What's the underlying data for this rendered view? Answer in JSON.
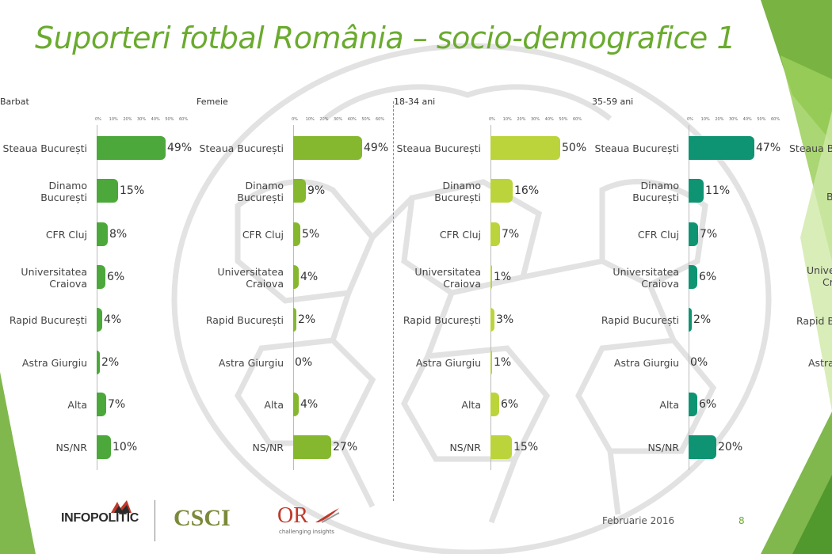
{
  "slide_title": "Suporteri fotbal România – socio-demografice 1",
  "tick_labels": [
    "0%",
    "10%",
    "20%",
    "30%",
    "40%",
    "50%",
    "60%"
  ],
  "colors": {
    "title": "#6aab2e",
    "barbat": "#4ca83a",
    "femeie": "#86b82f",
    "age_18_34": "#bcd43b",
    "age_35_59": "#0f9473"
  },
  "chart_data": [
    {
      "type": "bar",
      "orientation": "horizontal",
      "title": "Barbat",
      "categories": [
        "Steaua București",
        "Dinamo\nBucurești",
        "CFR Cluj",
        "Universitatea\nCraiova",
        "Rapid București",
        "Astra Giurgiu",
        "Alta",
        "NS/NR"
      ],
      "values": [
        49,
        15,
        8,
        6,
        4,
        2,
        7,
        10
      ],
      "value_labels": [
        "49%",
        "15%",
        "8%",
        "6%",
        "4%",
        "2%",
        "7%",
        "10%"
      ],
      "xlim": [
        0,
        60
      ],
      "unit": "%"
    },
    {
      "type": "bar",
      "orientation": "horizontal",
      "title": "Femeie",
      "categories": [
        "Steaua București",
        "Dinamo\nBucurești",
        "CFR Cluj",
        "Universitatea\nCraiova",
        "Rapid București",
        "Astra Giurgiu",
        "Alta",
        "NS/NR"
      ],
      "values": [
        49,
        9,
        5,
        4,
        2,
        0,
        4,
        27
      ],
      "value_labels": [
        "49%",
        "9%",
        "5%",
        "4%",
        "2%",
        "0%",
        "4%",
        "27%"
      ],
      "xlim": [
        0,
        60
      ],
      "unit": "%"
    },
    {
      "type": "bar",
      "orientation": "horizontal",
      "title": "18-34 ani",
      "categories": [
        "Steaua București",
        "Dinamo\nBucurești",
        "CFR Cluj",
        "Universitatea\nCraiova",
        "Rapid București",
        "Astra Giurgiu",
        "Alta",
        "NS/NR"
      ],
      "values": [
        50,
        16,
        7,
        1,
        3,
        1,
        6,
        15
      ],
      "value_labels": [
        "50%",
        "16%",
        "7%",
        "1%",
        "3%",
        "1%",
        "6%",
        "15%"
      ],
      "xlim": [
        0,
        60
      ],
      "unit": "%"
    },
    {
      "type": "bar",
      "orientation": "horizontal",
      "title": "35-59 ani",
      "categories": [
        "Steaua București",
        "Dinamo\nBucurești",
        "CFR Cluj",
        "Universitatea\nCraiova",
        "Rapid București",
        "Astra Giurgiu",
        "Alta",
        "NS/NR"
      ],
      "values": [
        47,
        11,
        7,
        6,
        2,
        0,
        6,
        20
      ],
      "value_labels": [
        "47%",
        "11%",
        "7%",
        "6%",
        "2%",
        "0%",
        "6%",
        "20%"
      ],
      "xlim": [
        0,
        60
      ],
      "unit": "%"
    }
  ],
  "edge_labels": [
    "Steaua B",
    "B",
    "Unive",
    "Cr",
    "Rapid B",
    "Astra"
  ],
  "footer": {
    "logo_infopolitic": "INFOPOLITIC",
    "logo_csci": "CSCI",
    "logo_ors": "OR",
    "logo_ors_tagline": "challenging insights",
    "date": "Februarie 2016",
    "page_number": "8"
  }
}
